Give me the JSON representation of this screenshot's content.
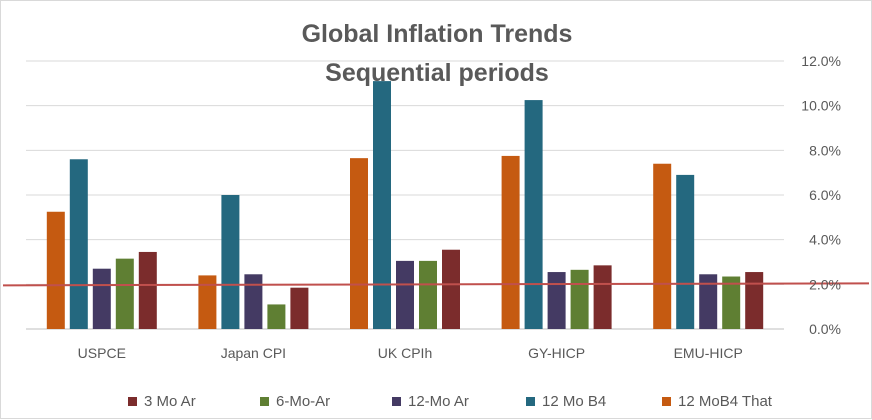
{
  "chart_data": {
    "type": "bar",
    "title": "Global Inflation Trends",
    "subtitle": "Sequential periods",
    "categories": [
      "USPCE",
      "Japan CPI",
      "UK CPIh",
      "GY-HICP",
      "EMU-HICP"
    ],
    "series": [
      {
        "name": "12 MoB4 That",
        "color": "#c55a11",
        "values": [
          5.25,
          2.4,
          7.65,
          7.75,
          7.4
        ]
      },
      {
        "name": "12 Mo B4",
        "color": "#24687f",
        "values": [
          7.6,
          6.0,
          11.1,
          10.25,
          6.9
        ]
      },
      {
        "name": "12-Mo Ar",
        "color": "#443a63",
        "values": [
          2.7,
          2.45,
          3.05,
          2.55,
          2.45
        ]
      },
      {
        "name": "6-Mo-Ar",
        "color": "#5f7f33",
        "values": [
          3.15,
          1.1,
          3.05,
          2.65,
          2.35
        ]
      },
      {
        "name": "3 Mo Ar",
        "color": "#7b2c2c",
        "values": [
          3.45,
          1.85,
          3.55,
          2.85,
          2.55
        ]
      }
    ],
    "y_axis": {
      "min": 0,
      "max": 12,
      "step": 2,
      "position": "right",
      "tick_labels": [
        "0.0%",
        "2.0%",
        "4.0%",
        "6.0%",
        "8.0%",
        "10.0%",
        "12.0%"
      ]
    },
    "reference_line": {
      "value": 2.0,
      "color": "#c0504d"
    },
    "legend": {
      "position": "bottom",
      "items": [
        {
          "name": "3 Mo Ar",
          "color": "#7b2c2c"
        },
        {
          "name": "6-Mo-Ar",
          "color": "#5f7f33"
        },
        {
          "name": "12-Mo Ar",
          "color": "#443a63"
        },
        {
          "name": "12 Mo B4",
          "color": "#24687f"
        },
        {
          "name": "12 MoB4 That",
          "color": "#c55a11"
        }
      ]
    },
    "gridlines": true
  }
}
